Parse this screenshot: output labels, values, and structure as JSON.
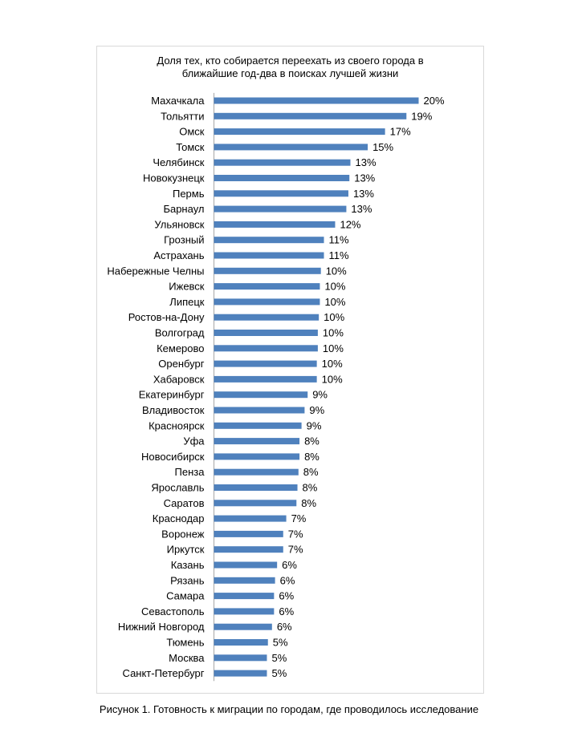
{
  "chart_data": {
    "type": "bar",
    "orientation": "horizontal",
    "title_lines": [
      "Доля тех, кто собирается переехать из своего города в",
      "ближайшие год-два в поисках лучшей жизни"
    ],
    "categories": [
      "Махачкала",
      "Тольятти",
      "Омск",
      "Томск",
      "Челябинск",
      "Новокузнецк",
      "Пермь",
      "Барнаул",
      "Ульяновск",
      "Грозный",
      "Астрахань",
      "Набережные Челны",
      "Ижевск",
      "Липецк",
      "Ростов-на-Дону",
      "Волгоград",
      "Кемерово",
      "Оренбург",
      "Хабаровск",
      "Екатеринбург",
      "Владивосток",
      "Красноярск",
      "Уфа",
      "Новосибирск",
      "Пенза",
      "Ярославль",
      "Саратов",
      "Краснодар",
      "Воронеж",
      "Иркутск",
      "Казань",
      "Рязань",
      "Самара",
      "Севастополь",
      "Нижний Новгород",
      "Тюмень",
      "Москва",
      "Санкт-Петербург"
    ],
    "values": [
      20.1,
      18.9,
      16.8,
      15.1,
      13.4,
      13.3,
      13.2,
      13.0,
      11.9,
      10.8,
      10.8,
      10.5,
      10.4,
      10.4,
      10.3,
      10.2,
      10.2,
      10.1,
      10.1,
      9.2,
      8.9,
      8.6,
      8.4,
      8.4,
      8.3,
      8.2,
      8.1,
      7.1,
      6.8,
      6.8,
      6.2,
      6.0,
      5.9,
      5.9,
      5.7,
      5.3,
      5.2,
      5.2
    ],
    "data_labels": [
      "20%",
      "19%",
      "17%",
      "15%",
      "13%",
      "13%",
      "13%",
      "13%",
      "12%",
      "11%",
      "11%",
      "10%",
      "10%",
      "10%",
      "10%",
      "10%",
      "10%",
      "10%",
      "10%",
      "9%",
      "9%",
      "9%",
      "8%",
      "8%",
      "8%",
      "8%",
      "8%",
      "7%",
      "7%",
      "7%",
      "6%",
      "6%",
      "6%",
      "6%",
      "6%",
      "5%",
      "5%",
      "5%"
    ],
    "xlim": [
      0,
      20.1
    ],
    "bar_color": "#4f81bd",
    "axis_color": "#a6a6a6",
    "grid": false,
    "legend": false
  },
  "caption": "Рисунок 1. Готовность к миграции по городам, где проводилось исследование"
}
